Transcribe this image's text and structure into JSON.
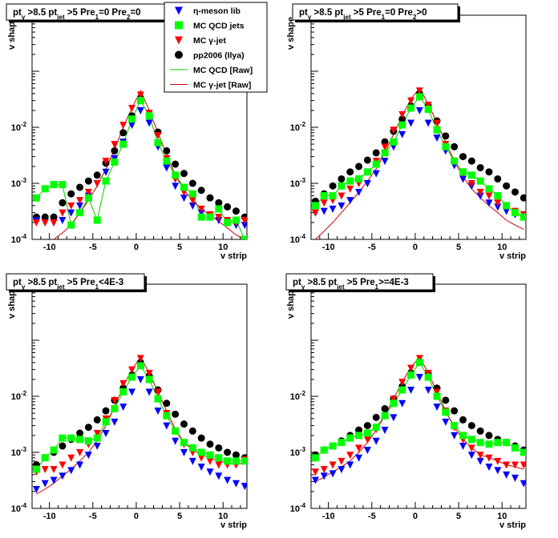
{
  "figure": {
    "axis_common": {
      "xlabel": "v strip",
      "ylabel": "v shape",
      "xlim": [
        -12,
        12.75
      ],
      "ylim": [
        0.0001,
        1
      ],
      "ylog": true,
      "xticks": [
        -10,
        -5,
        0,
        5,
        10
      ],
      "ytick_labels": [
        "10",
        "10",
        "10"
      ],
      "ytick_exps": [
        "-4",
        "-3",
        "-2"
      ],
      "ytick_values": [
        0.0001,
        0.001,
        0.01
      ]
    },
    "legend": {
      "entries": [
        "η-meson lib",
        "MC QCD jets",
        "MC γ-jet",
        "pp2006 (Ilya)",
        "MC QCD [Raw]",
        "MC γ-jet [Raw]"
      ]
    },
    "colors": {
      "eta": "#0000ff",
      "qcd": "#00ff00",
      "gjet": "#ff0000",
      "pp2006": "#000000",
      "qcd_raw": "#00cc00",
      "gjet_raw": "#cc0000"
    }
  },
  "chart_data": [
    {
      "type": "scatter",
      "title": "pt_γ>8.5 pt_jet>5 Pre1=0 Pre2=0",
      "title_parts": {
        "a": "pt",
        "a_sub": "γ",
        "b": " >8.5  pt",
        "b_sub": "jet",
        "c": " >5 Pre",
        "c_sub": "1",
        "d": "=0 Pre",
        "d_sub": "2",
        "e": "=0"
      },
      "xlabel": "v strip",
      "ylabel": "v shape",
      "xlim": [
        -12,
        12.75
      ],
      "ylim": [
        0.0001,
        1
      ],
      "yscale": "log",
      "x": [
        -11.5,
        -10.5,
        -9.5,
        -8.5,
        -7.5,
        -6.5,
        -5.5,
        -4.5,
        -3.5,
        -2.5,
        -1.5,
        -0.5,
        0.5,
        1.5,
        2.5,
        3.5,
        4.5,
        5.5,
        6.5,
        7.5,
        8.5,
        9.5,
        10.5,
        11.5,
        12.5
      ],
      "series": [
        {
          "name": "η-meson lib",
          "key": "eta",
          "marker": "triangle-down",
          "values": [
            0.00022,
            0.0002,
            0.0002,
            0.00022,
            0.0003,
            0.0004,
            0.0006,
            0.001,
            0.0016,
            0.0028,
            0.0055,
            0.011,
            0.02,
            0.012,
            0.0045,
            0.0019,
            0.0009,
            0.00055,
            0.0004,
            0.0003,
            0.00025,
            0.00022,
            0.0002,
            0.00018,
            0.00018
          ]
        },
        {
          "name": "MC QCD jets",
          "key": "qcd",
          "marker": "square",
          "values": [
            0.00055,
            0.0008,
            0.00095,
            0.00095,
            0.00018,
            0.0003,
            0.00055,
            0.00022,
            0.0011,
            0.0024,
            0.005,
            0.014,
            0.03,
            0.016,
            0.0053,
            0.0025,
            0.0014,
            0.00085,
            0.00065,
            0.00025,
            0.00025,
            0.00035,
            0.0002,
            0.00022,
            0.0001
          ]
        },
        {
          "name": "MC γ-jet",
          "key": "gjet",
          "marker": "triangle-down",
          "values": [
            0.0002,
            0.0002,
            0.0002,
            0.0003,
            0.0004,
            0.0005,
            0.0007,
            0.001,
            0.0025,
            0.005,
            0.011,
            0.022,
            0.038,
            0.018,
            0.0072,
            0.0028,
            0.0012,
            0.0007,
            0.0005,
            0.00035,
            0.00028,
            0.00025,
            0.00022,
            0.0002,
            0.00022
          ]
        },
        {
          "name": "pp2006 (Ilya)",
          "key": "pp2006",
          "marker": "circle",
          "values": [
            0.00025,
            0.00025,
            0.00025,
            0.00045,
            0.00065,
            0.00085,
            0.0011,
            0.0014,
            0.0023,
            0.0038,
            0.008,
            0.016,
            0.033,
            0.016,
            0.0082,
            0.0038,
            0.0022,
            0.0015,
            0.001,
            0.00075,
            0.00055,
            0.00045,
            0.00038,
            0.00032,
            0.00025
          ]
        },
        {
          "name": "MC QCD [Raw]",
          "key": "qcd_raw",
          "marker": "line",
          "values": [
            0.00055,
            0.0008,
            0.00095,
            0.00095,
            0.00018,
            0.0003,
            0.00055,
            0.00022,
            0.0011,
            0.0024,
            0.005,
            0.014,
            0.03,
            0.016,
            0.0053,
            0.0025,
            0.0014,
            0.00085,
            0.00065,
            0.00025,
            0.00025,
            0.00035,
            0.0002,
            0.00022,
            0.0001
          ]
        },
        {
          "name": "MC γ-jet [Raw]",
          "key": "gjet_raw",
          "marker": "line",
          "values": [
            7e-05,
            8e-05,
            0.0001,
            0.00013,
            0.00018,
            0.0003,
            0.0005,
            0.0009,
            0.0018,
            0.004,
            0.01,
            0.022,
            0.045,
            0.02,
            0.008,
            0.0032,
            0.0014,
            0.00075,
            0.0005,
            0.00035,
            0.00027,
            0.00021,
            0.00016,
            0.00012,
            0.0001
          ]
        }
      ]
    },
    {
      "type": "scatter",
      "title": "pt_γ>8.5 pt_jet>5 Pre1=0 Pre2>0",
      "title_parts": {
        "a": "pt",
        "a_sub": "γ",
        "b": " >8.5  pt",
        "b_sub": "jet",
        "c": " >5 Pre",
        "c_sub": "1",
        "d": "=0 Pre",
        "d_sub": "2",
        "e": ">0"
      },
      "xlabel": "v strip",
      "ylabel": "v shape",
      "xlim": [
        -12,
        12.75
      ],
      "ylim": [
        0.0001,
        1
      ],
      "yscale": "log",
      "x": [
        -11.5,
        -10.5,
        -9.5,
        -8.5,
        -7.5,
        -6.5,
        -5.5,
        -4.5,
        -3.5,
        -2.5,
        -1.5,
        -0.5,
        0.5,
        1.5,
        2.5,
        3.5,
        4.5,
        5.5,
        6.5,
        7.5,
        8.5,
        9.5,
        10.5,
        11.5,
        12.5
      ],
      "series": [
        {
          "name": "η-meson lib",
          "key": "eta",
          "marker": "triangle-down",
          "values": [
            0.0003,
            0.00032,
            0.00035,
            0.0004,
            0.0005,
            0.0007,
            0.001,
            0.0015,
            0.0025,
            0.0045,
            0.0075,
            0.012,
            0.02,
            0.012,
            0.0065,
            0.0038,
            0.0021,
            0.0012,
            0.0009,
            0.0006,
            0.00045,
            0.00038,
            0.00032,
            0.00028,
            0.00025
          ]
        },
        {
          "name": "MC QCD jets",
          "key": "qcd",
          "marker": "square",
          "values": [
            0.0004,
            0.0006,
            0.0006,
            0.0009,
            0.0011,
            0.0012,
            0.0016,
            0.0022,
            0.0035,
            0.0055,
            0.011,
            0.022,
            0.035,
            0.021,
            0.009,
            0.0045,
            0.0025,
            0.0016,
            0.0014,
            0.0011,
            0.0008,
            0.0006,
            0.0004,
            0.0003,
            0.00025
          ]
        },
        {
          "name": "MC γ-jet",
          "key": "gjet",
          "marker": "triangle-down",
          "values": [
            0.0003,
            0.00045,
            0.0005,
            0.0006,
            0.0008,
            0.001,
            0.0016,
            0.0025,
            0.0045,
            0.009,
            0.017,
            0.03,
            0.045,
            0.025,
            0.012,
            0.005,
            0.0025,
            0.0015,
            0.001,
            0.0007,
            0.0006,
            0.00045,
            0.0004,
            0.00032,
            0.00028
          ]
        },
        {
          "name": "pp2006 (Ilya)",
          "key": "pp2006",
          "marker": "circle",
          "values": [
            0.00048,
            0.00065,
            0.0009,
            0.0012,
            0.0016,
            0.002,
            0.0026,
            0.0035,
            0.0055,
            0.0085,
            0.014,
            0.024,
            0.04,
            0.024,
            0.013,
            0.007,
            0.0045,
            0.003,
            0.0025,
            0.0019,
            0.0016,
            0.0012,
            0.0009,
            0.0007,
            0.00055
          ]
        },
        {
          "name": "MC QCD [Raw]",
          "key": "qcd_raw",
          "marker": "line",
          "values": [
            0.0004,
            0.0006,
            0.0006,
            0.0009,
            0.0011,
            0.0012,
            0.0016,
            0.0022,
            0.0035,
            0.0055,
            0.011,
            0.022,
            0.035,
            0.021,
            0.009,
            0.0045,
            0.0025,
            0.0016,
            0.0014,
            0.0011,
            0.0008,
            0.0006,
            0.0004,
            0.0003,
            0.00025
          ]
        },
        {
          "name": "MC γ-jet [Raw]",
          "key": "gjet_raw",
          "marker": "line",
          "values": [
            0.0001,
            0.00014,
            0.0002,
            0.0003,
            0.00045,
            0.0007,
            0.0011,
            0.0018,
            0.0035,
            0.0075,
            0.016,
            0.032,
            0.05,
            0.026,
            0.012,
            0.0055,
            0.0025,
            0.0013,
            0.0008,
            0.00055,
            0.0004,
            0.0003,
            0.00022,
            0.00018,
            0.00015
          ]
        }
      ]
    },
    {
      "type": "scatter",
      "title": "pt_γ>8.5 pt_jet>5 Pre1<4E-3",
      "title_parts": {
        "a": "pt",
        "a_sub": "γ",
        "b": " >8.5  pt",
        "b_sub": "jet",
        "c": " >5 Pre",
        "c_sub": "1",
        "d": "<4E-3",
        "d_sub": "",
        "e": ""
      },
      "xlabel": "v strip",
      "ylabel": "v shape",
      "xlim": [
        -12,
        12.75
      ],
      "ylim": [
        0.0001,
        1
      ],
      "yscale": "log",
      "x": [
        -11.5,
        -10.5,
        -9.5,
        -8.5,
        -7.5,
        -6.5,
        -5.5,
        -4.5,
        -3.5,
        -2.5,
        -1.5,
        -0.5,
        0.5,
        1.5,
        2.5,
        3.5,
        4.5,
        5.5,
        6.5,
        7.5,
        8.5,
        9.5,
        10.5,
        11.5,
        12.5
      ],
      "series": [
        {
          "name": "η-meson lib",
          "key": "eta",
          "marker": "triangle-down",
          "values": [
            0.00022,
            0.00028,
            0.00032,
            0.00038,
            0.00048,
            0.0006,
            0.0009,
            0.0013,
            0.0022,
            0.0035,
            0.0065,
            0.012,
            0.02,
            0.012,
            0.0055,
            0.003,
            0.0016,
            0.001,
            0.0007,
            0.00055,
            0.00045,
            0.00038,
            0.00032,
            0.00028,
            0.00025
          ]
        },
        {
          "name": "MC QCD jets",
          "key": "qcd",
          "marker": "square",
          "values": [
            0.0005,
            0.0008,
            0.0011,
            0.0018,
            0.0018,
            0.0017,
            0.0016,
            0.0018,
            0.0035,
            0.006,
            0.012,
            0.022,
            0.035,
            0.02,
            0.009,
            0.0045,
            0.0024,
            0.0015,
            0.0012,
            0.001,
            0.0009,
            0.0008,
            0.0007,
            0.0007,
            0.0007
          ]
        },
        {
          "name": "MC γ-jet",
          "key": "gjet",
          "marker": "triangle-down",
          "values": [
            0.00045,
            0.0005,
            0.0005,
            0.0006,
            0.0008,
            0.001,
            0.0014,
            0.0022,
            0.004,
            0.0085,
            0.017,
            0.03,
            0.048,
            0.026,
            0.012,
            0.005,
            0.0024,
            0.0014,
            0.001,
            0.0008,
            0.0007,
            0.0006,
            0.0006,
            0.0006,
            0.00075
          ]
        },
        {
          "name": "pp2006 (Ilya)",
          "key": "pp2006",
          "marker": "circle",
          "values": [
            0.0006,
            0.0008,
            0.001,
            0.0013,
            0.0017,
            0.0022,
            0.0028,
            0.0038,
            0.0055,
            0.0085,
            0.014,
            0.024,
            0.04,
            0.023,
            0.013,
            0.0075,
            0.0048,
            0.0032,
            0.0024,
            0.0018,
            0.0014,
            0.0012,
            0.001,
            0.0009,
            0.0008
          ]
        },
        {
          "name": "MC QCD [Raw]",
          "key": "qcd_raw",
          "marker": "line",
          "values": [
            0.0005,
            0.0008,
            0.0011,
            0.0018,
            0.0018,
            0.0017,
            0.0016,
            0.0018,
            0.0035,
            0.006,
            0.012,
            0.022,
            0.035,
            0.02,
            0.009,
            0.0045,
            0.0024,
            0.0015,
            0.0012,
            0.001,
            0.0009,
            0.0008,
            0.0007,
            0.0007,
            0.0007
          ]
        },
        {
          "name": "MC γ-jet [Raw]",
          "key": "gjet_raw",
          "marker": "line",
          "values": [
            0.00018,
            0.00022,
            0.00028,
            0.00038,
            0.0005,
            0.0007,
            0.001,
            0.0016,
            0.003,
            0.0065,
            0.015,
            0.03,
            0.05,
            0.026,
            0.012,
            0.0055,
            0.0026,
            0.0015,
            0.0011,
            0.0009,
            0.0008,
            0.0007,
            0.00065,
            0.0006,
            0.00065
          ]
        }
      ]
    },
    {
      "type": "scatter",
      "title": "pt_γ>8.5 pt_jet>5 Pre1>=4E-3",
      "title_parts": {
        "a": "pt",
        "a_sub": "γ",
        "b": " >8.5  pt",
        "b_sub": "jet",
        "c": " >5 Pre",
        "c_sub": "1",
        "d": ">=4E-3",
        "d_sub": "",
        "e": ""
      },
      "xlabel": "v strip",
      "ylabel": "v shape",
      "xlim": [
        -12,
        12.75
      ],
      "ylim": [
        0.0001,
        1
      ],
      "yscale": "log",
      "x": [
        -11.5,
        -10.5,
        -9.5,
        -8.5,
        -7.5,
        -6.5,
        -5.5,
        -4.5,
        -3.5,
        -2.5,
        -1.5,
        -0.5,
        0.5,
        1.5,
        2.5,
        3.5,
        4.5,
        5.5,
        6.5,
        7.5,
        8.5,
        9.5,
        10.5,
        11.5,
        12.5
      ],
      "series": [
        {
          "name": "η-meson lib",
          "key": "eta",
          "marker": "triangle-down",
          "values": [
            0.00032,
            0.00038,
            0.00042,
            0.0005,
            0.0006,
            0.0008,
            0.0011,
            0.0016,
            0.0025,
            0.0042,
            0.0075,
            0.013,
            0.022,
            0.013,
            0.0065,
            0.0035,
            0.002,
            0.0013,
            0.0009,
            0.0007,
            0.00055,
            0.00048,
            0.0004,
            0.00035,
            0.00028
          ]
        },
        {
          "name": "MC QCD jets",
          "key": "qcd",
          "marker": "square",
          "values": [
            0.0008,
            0.0011,
            0.0013,
            0.0015,
            0.0018,
            0.002,
            0.0022,
            0.0028,
            0.0045,
            0.0075,
            0.013,
            0.024,
            0.04,
            0.022,
            0.01,
            0.0052,
            0.003,
            0.002,
            0.0017,
            0.0015,
            0.0014,
            0.0015,
            0.0015,
            0.0012,
            0.001
          ]
        },
        {
          "name": "MC γ-jet",
          "key": "gjet",
          "marker": "triangle-down",
          "values": [
            0.00045,
            0.0005,
            0.0006,
            0.0007,
            0.0009,
            0.0012,
            0.0017,
            0.0026,
            0.0045,
            0.009,
            0.018,
            0.032,
            0.048,
            0.026,
            0.012,
            0.0055,
            0.0028,
            0.0017,
            0.0012,
            0.0009,
            0.0008,
            0.0007,
            0.0006,
            0.0006,
            0.0006
          ]
        },
        {
          "name": "pp2006 (Ilya)",
          "key": "pp2006",
          "marker": "circle",
          "values": [
            0.0009,
            0.0011,
            0.0013,
            0.0016,
            0.002,
            0.0025,
            0.003,
            0.0042,
            0.006,
            0.009,
            0.015,
            0.026,
            0.042,
            0.025,
            0.014,
            0.0085,
            0.0055,
            0.0038,
            0.003,
            0.0024,
            0.002,
            0.0017,
            0.0015,
            0.0013,
            0.0011
          ]
        },
        {
          "name": "MC QCD [Raw]",
          "key": "qcd_raw",
          "marker": "line",
          "values": [
            0.0008,
            0.0011,
            0.0013,
            0.0015,
            0.0018,
            0.002,
            0.0022,
            0.0028,
            0.0045,
            0.0075,
            0.013,
            0.024,
            0.04,
            0.022,
            0.01,
            0.0052,
            0.003,
            0.002,
            0.0017,
            0.0015,
            0.0014,
            0.0015,
            0.0015,
            0.0012,
            0.001
          ]
        },
        {
          "name": "MC γ-jet [Raw]",
          "key": "gjet_raw",
          "marker": "line",
          "values": [
            0.0003,
            0.00036,
            0.00045,
            0.00055,
            0.0007,
            0.001,
            0.0015,
            0.0025,
            0.0045,
            0.009,
            0.018,
            0.033,
            0.05,
            0.026,
            0.012,
            0.0055,
            0.0028,
            0.0017,
            0.0012,
            0.0009,
            0.0008,
            0.0007,
            0.0006,
            0.00055,
            0.0005
          ]
        }
      ]
    }
  ]
}
